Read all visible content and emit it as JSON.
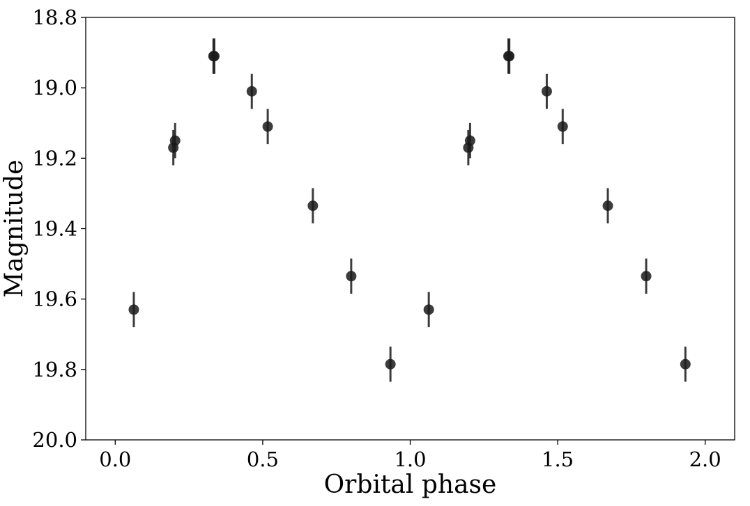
{
  "chart_data": {
    "type": "scatter",
    "xlabel": "Orbital phase",
    "ylabel": "Magnitude",
    "xlim": [
      -0.1,
      2.1
    ],
    "ylim": [
      20.0,
      18.8
    ],
    "y_inverted": true,
    "grid": false,
    "x_ticks": [
      0.0,
      0.5,
      1.0,
      1.5,
      2.0
    ],
    "x_tick_labels": [
      "0.0",
      "0.5",
      "1.0",
      "1.5",
      "2.0"
    ],
    "y_ticks": [
      18.8,
      19.0,
      19.2,
      19.4,
      19.6,
      19.8,
      20.0
    ],
    "y_tick_labels": [
      "18.8",
      "19.0",
      "19.2",
      "19.4",
      "19.6",
      "19.8",
      "20.0"
    ],
    "marker_color": "#1a1a1a",
    "series": [
      {
        "points": [
          {
            "x": 0.063,
            "y": 19.63,
            "err": 0.05
          },
          {
            "x": 0.197,
            "y": 19.17,
            "err": 0.05
          },
          {
            "x": 0.203,
            "y": 19.15,
            "err": 0.05
          },
          {
            "x": 0.333,
            "y": 18.91,
            "err": 0.05
          },
          {
            "x": 0.336,
            "y": 18.91,
            "err": 0.05
          },
          {
            "x": 0.463,
            "y": 19.01,
            "err": 0.05
          },
          {
            "x": 0.517,
            "y": 19.11,
            "err": 0.05
          },
          {
            "x": 0.67,
            "y": 19.335,
            "err": 0.05
          },
          {
            "x": 0.8,
            "y": 19.535,
            "err": 0.05
          },
          {
            "x": 0.933,
            "y": 19.785,
            "err": 0.05
          },
          {
            "x": 1.063,
            "y": 19.63,
            "err": 0.05
          },
          {
            "x": 1.197,
            "y": 19.17,
            "err": 0.05
          },
          {
            "x": 1.203,
            "y": 19.15,
            "err": 0.05
          },
          {
            "x": 1.333,
            "y": 18.91,
            "err": 0.05
          },
          {
            "x": 1.336,
            "y": 18.91,
            "err": 0.05
          },
          {
            "x": 1.463,
            "y": 19.01,
            "err": 0.05
          },
          {
            "x": 1.517,
            "y": 19.11,
            "err": 0.05
          },
          {
            "x": 1.67,
            "y": 19.335,
            "err": 0.05
          },
          {
            "x": 1.8,
            "y": 19.535,
            "err": 0.05
          },
          {
            "x": 1.933,
            "y": 19.785,
            "err": 0.05
          }
        ]
      }
    ]
  }
}
